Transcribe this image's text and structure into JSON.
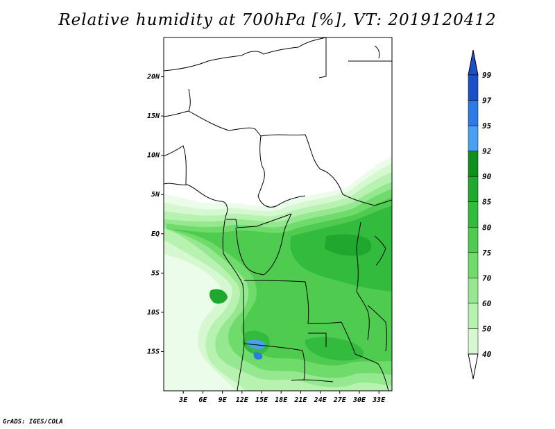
{
  "title": "Relative humidity at 700hPa [%], VT: 2019120412",
  "credit": "GrADS: IGES/COLA",
  "map": {
    "lat_labels": [
      "20N",
      "15N",
      "10N",
      "5N",
      "EQ",
      "5S",
      "10S",
      "15S"
    ],
    "lon_labels": [
      "3E",
      "6E",
      "9E",
      "12E",
      "15E",
      "18E",
      "21E",
      "24E",
      "27E",
      "30E",
      "33E"
    ],
    "lat_values": [
      20,
      15,
      10,
      5,
      0,
      -5,
      -10,
      -15
    ],
    "lon_values": [
      3,
      6,
      9,
      12,
      15,
      18,
      21,
      24,
      27,
      30,
      33
    ],
    "extent": {
      "lon_min": 0,
      "lon_max": 35,
      "lat_min": -20,
      "lat_max": 25
    }
  },
  "colorbar": {
    "levels": [
      "99",
      "97",
      "95",
      "92",
      "90",
      "85",
      "80",
      "75",
      "70",
      "60",
      "50",
      "40"
    ],
    "colors": [
      "#1a50c8",
      "#2b7ae6",
      "#4aa0f0",
      "#0f8f1f",
      "#1ea82e",
      "#33bb3d",
      "#4fcc50",
      "#6fdb6a",
      "#95e88f",
      "#b8f2b0",
      "#d6f8d0",
      "#ecfcea"
    ],
    "over_color": "#1a50c8",
    "under_color": "#ffffff"
  },
  "colors": {
    "land_dry": "#ffffff",
    "border": "#000000"
  }
}
